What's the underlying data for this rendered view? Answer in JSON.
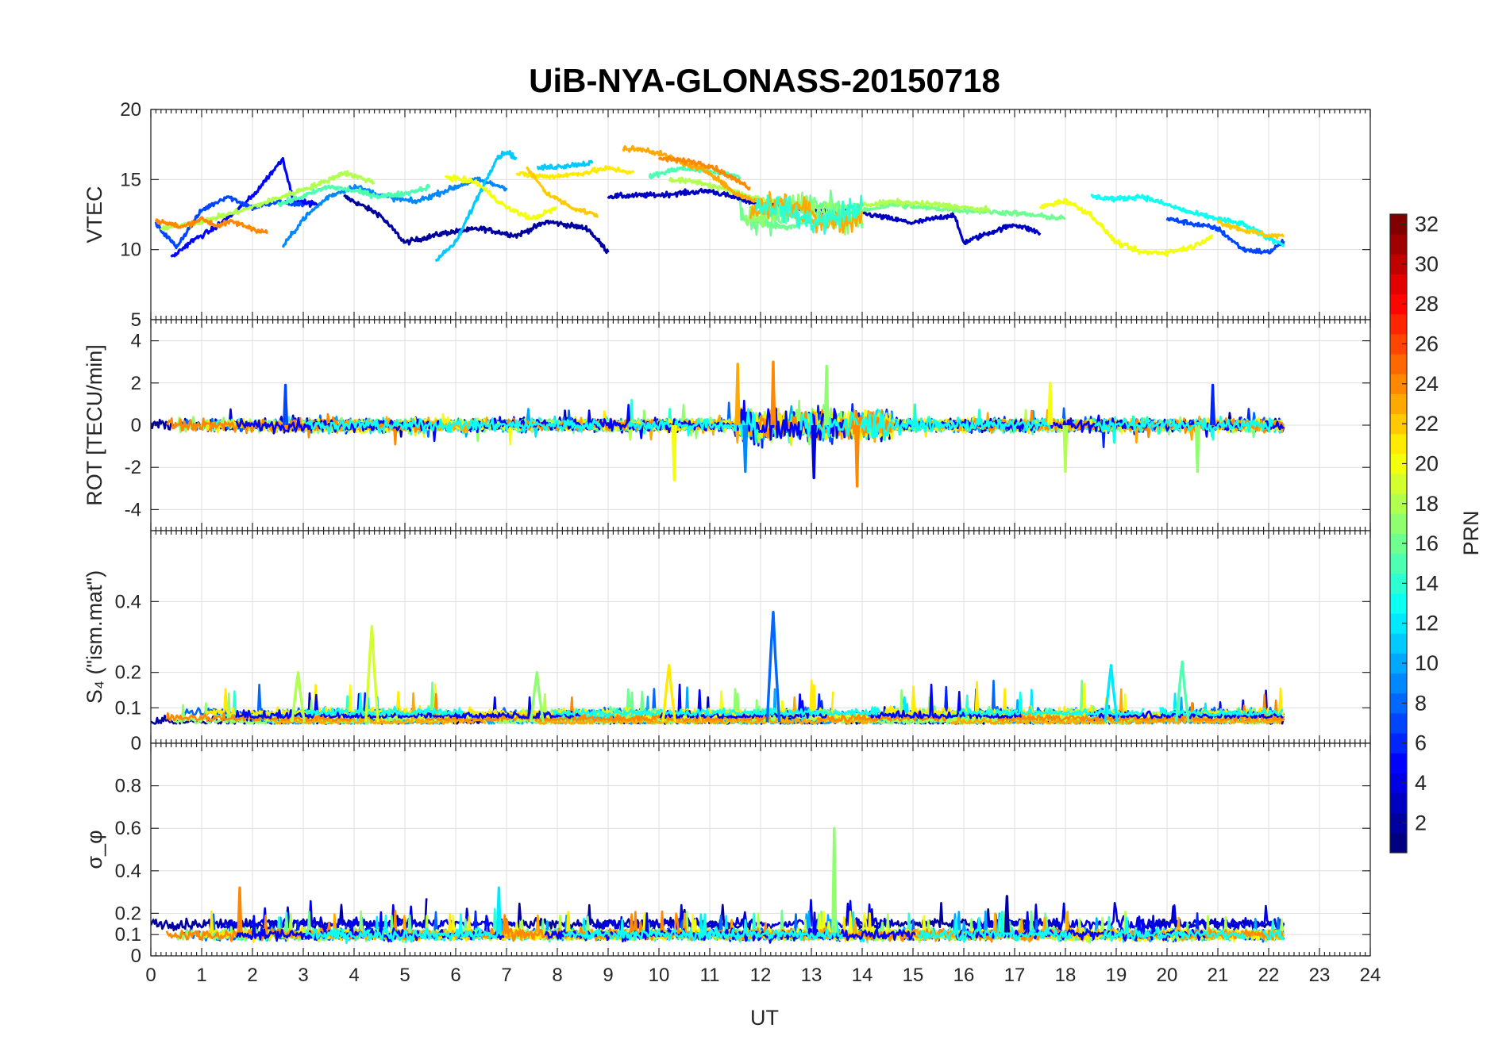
{
  "chart_data": {
    "type": "line",
    "title": "UiB-NYA-GLONASS-20150718",
    "xlabel": "UT",
    "xlim": [
      0,
      24
    ],
    "x_ticks": [
      "0",
      "1",
      "2",
      "3",
      "4",
      "5",
      "6",
      "7",
      "8",
      "9",
      "10",
      "11",
      "12",
      "13",
      "14",
      "15",
      "16",
      "17",
      "18",
      "19",
      "20",
      "21",
      "22",
      "23",
      "24"
    ],
    "data_end_ut": 22.3,
    "grid": true,
    "colormap": "jet",
    "colorbar": {
      "label": "PRN",
      "range": [
        1,
        32
      ],
      "ticks": [
        "2",
        "4",
        "6",
        "8",
        "10",
        "12",
        "14",
        "16",
        "18",
        "20",
        "22",
        "24",
        "26",
        "28",
        "30",
        "32"
      ],
      "placement": "right"
    },
    "panels": [
      {
        "name": "vtec",
        "ylabel": "VTEC",
        "ylim": [
          5,
          20
        ],
        "y_ticks": [
          "5",
          "10",
          "15",
          "20"
        ],
        "series": [
          {
            "prn": 2,
            "points": [
              [
                3.8,
                13.8
              ],
              [
                4.5,
                12.5
              ],
              [
                5.0,
                10.5
              ],
              [
                5.8,
                11.2
              ],
              [
                6.5,
                11.5
              ],
              [
                7.2,
                11.0
              ],
              [
                7.8,
                12.0
              ],
              [
                8.6,
                11.5
              ],
              [
                9.0,
                9.8
              ]
            ]
          },
          {
            "prn": 3,
            "points": [
              [
                9.0,
                13.8
              ],
              [
                10.0,
                13.9
              ],
              [
                11.0,
                14.2
              ],
              [
                12.0,
                13.2
              ],
              [
                13.0,
                12.8
              ],
              [
                14.0,
                12.6
              ],
              [
                15.0,
                11.9
              ],
              [
                15.8,
                12.5
              ],
              [
                16.0,
                10.5
              ],
              [
                16.5,
                11.2
              ],
              [
                17.0,
                11.8
              ],
              [
                17.5,
                11.2
              ]
            ]
          },
          {
            "prn": 5,
            "points": [
              [
                0.4,
                9.4
              ],
              [
                0.8,
                10.6
              ],
              [
                1.2,
                11.4
              ],
              [
                1.6,
                12.5
              ],
              [
                2.0,
                13.8
              ],
              [
                2.6,
                16.5
              ],
              [
                2.8,
                13.5
              ],
              [
                3.3,
                13.2
              ]
            ]
          },
          {
            "prn": 7,
            "points": [
              [
                0.1,
                11.8
              ],
              [
                0.5,
                10.2
              ],
              [
                1.0,
                12.8
              ],
              [
                1.5,
                13.8
              ],
              [
                2.0,
                13.0
              ],
              [
                2.5,
                13.4
              ],
              [
                3.0,
                13.2
              ]
            ]
          },
          {
            "prn": 7,
            "points": [
              [
                20.0,
                12.2
              ],
              [
                21.0,
                11.5
              ],
              [
                21.5,
                10.0
              ],
              [
                22.0,
                9.8
              ],
              [
                22.3,
                10.6
              ]
            ]
          },
          {
            "prn": 9,
            "points": [
              [
                2.6,
                10.2
              ],
              [
                3.0,
                12.2
              ],
              [
                3.5,
                13.8
              ],
              [
                4.0,
                14.5
              ],
              [
                4.6,
                13.8
              ],
              [
                5.2,
                13.4
              ],
              [
                5.8,
                14.2
              ],
              [
                6.4,
                15.0
              ],
              [
                7.0,
                14.4
              ]
            ]
          },
          {
            "prn": 11,
            "points": [
              [
                5.6,
                9.2
              ],
              [
                6.0,
                10.5
              ],
              [
                6.4,
                13.5
              ],
              [
                6.8,
                16.5
              ],
              [
                7.0,
                17.0
              ],
              [
                7.2,
                16.5
              ]
            ]
          },
          {
            "prn": 11,
            "points": [
              [
                7.6,
                15.8
              ],
              [
                8.2,
                16.0
              ],
              [
                8.7,
                16.2
              ]
            ]
          },
          {
            "prn": 13,
            "points": [
              [
                18.5,
                13.8
              ],
              [
                19.0,
                13.6
              ],
              [
                19.5,
                13.8
              ],
              [
                20.0,
                13.2
              ],
              [
                20.5,
                12.6
              ],
              [
                21.0,
                12.2
              ],
              [
                21.5,
                11.8
              ],
              [
                22.0,
                10.8
              ],
              [
                22.3,
                10.4
              ]
            ]
          },
          {
            "prn": 15,
            "points": [
              [
                2.5,
                13.2
              ],
              [
                3.0,
                13.8
              ],
              [
                3.5,
                14.5
              ],
              [
                4.0,
                14.2
              ],
              [
                4.5,
                13.8
              ],
              [
                5.0,
                14.0
              ],
              [
                5.5,
                14.5
              ]
            ]
          },
          {
            "prn": 15,
            "points": [
              [
                9.8,
                15.2
              ],
              [
                10.4,
                15.8
              ],
              [
                11.0,
                15.6
              ],
              [
                11.6,
                15.2
              ]
            ]
          },
          {
            "prn": 16,
            "points": [
              [
                11.8,
                12.0
              ],
              [
                12.5,
                11.6
              ],
              [
                13.2,
                12.2
              ],
              [
                14.0,
                12.8
              ],
              [
                14.6,
                13.2
              ],
              [
                15.2,
                13.0
              ],
              [
                16.0,
                12.8
              ],
              [
                17.0,
                12.6
              ],
              [
                18.0,
                12.2
              ]
            ]
          },
          {
            "prn": 18,
            "points": [
              [
                0.2,
                11.5
              ],
              [
                1.0,
                12.0
              ],
              [
                1.8,
                12.8
              ],
              [
                2.6,
                13.8
              ],
              [
                3.4,
                14.8
              ],
              [
                3.8,
                15.5
              ],
              [
                4.4,
                14.8
              ]
            ]
          },
          {
            "prn": 18,
            "points": [
              [
                10.2,
                15.0
              ],
              [
                10.8,
                14.8
              ],
              [
                11.4,
                14.2
              ],
              [
                12.0,
                13.6
              ],
              [
                12.8,
                13.2
              ],
              [
                13.6,
                13.0
              ],
              [
                14.6,
                13.4
              ],
              [
                15.5,
                13.2
              ],
              [
                16.5,
                12.8
              ]
            ]
          },
          {
            "prn": 20,
            "points": [
              [
                5.8,
                15.2
              ],
              [
                6.4,
                14.8
              ],
              [
                7.0,
                13.0
              ],
              [
                7.5,
                12.2
              ],
              [
                8.0,
                13.0
              ]
            ]
          },
          {
            "prn": 20,
            "points": [
              [
                17.5,
                13.0
              ],
              [
                18.0,
                13.5
              ],
              [
                18.5,
                12.5
              ],
              [
                19.0,
                10.5
              ],
              [
                19.5,
                9.8
              ],
              [
                20.0,
                9.8
              ],
              [
                20.5,
                10.2
              ],
              [
                20.9,
                11.0
              ]
            ]
          },
          {
            "prn": 21,
            "points": [
              [
                7.2,
                15.4
              ],
              [
                7.8,
                15.2
              ],
              [
                8.4,
                15.4
              ],
              [
                9.0,
                15.8
              ],
              [
                9.5,
                15.5
              ]
            ]
          },
          {
            "prn": 22,
            "points": [
              [
                7.4,
                15.8
              ],
              [
                7.8,
                14.0
              ],
              [
                8.3,
                13.0
              ],
              [
                8.8,
                12.4
              ]
            ]
          },
          {
            "prn": 23,
            "points": [
              [
                9.3,
                17.2
              ],
              [
                9.8,
                17.1
              ],
              [
                10.2,
                16.6
              ],
              [
                10.6,
                16.0
              ],
              [
                11.0,
                15.5
              ],
              [
                11.5,
                14.0
              ],
              [
                12.0,
                13.4
              ],
              [
                12.6,
                12.4
              ],
              [
                13.2,
                11.8
              ],
              [
                13.6,
                12.6
              ]
            ]
          },
          {
            "prn": 24,
            "points": [
              [
                0.1,
                12.1
              ],
              [
                0.6,
                11.6
              ],
              [
                1.0,
                12.2
              ],
              [
                1.3,
                11.7
              ],
              [
                1.6,
                12.0
              ],
              [
                2.0,
                11.5
              ],
              [
                2.3,
                11.2
              ]
            ]
          },
          {
            "prn": 24,
            "points": [
              [
                10.0,
                16.5
              ],
              [
                10.6,
                16.3
              ],
              [
                11.0,
                16.0
              ],
              [
                11.4,
                15.2
              ],
              [
                11.8,
                14.4
              ]
            ]
          },
          {
            "prn": 22,
            "points": [
              [
                21.0,
                12.0
              ],
              [
                21.5,
                11.4
              ],
              [
                22.0,
                11.0
              ],
              [
                22.3,
                11.0
              ]
            ]
          }
        ]
      },
      {
        "name": "rot",
        "ylabel": "ROT [TECU/min]",
        "ylim": [
          -5,
          5
        ],
        "y_ticks": [
          "-4",
          "-2",
          "0",
          "2",
          "4"
        ],
        "spikes": [
          {
            "prn": 7,
            "t": 2.65,
            "v": 1.9
          },
          {
            "prn": 20,
            "t": 10.3,
            "v": -2.6
          },
          {
            "prn": 23,
            "t": 11.55,
            "v": 2.9
          },
          {
            "prn": 9,
            "t": 11.7,
            "v": -2.2
          },
          {
            "prn": 24,
            "t": 12.25,
            "v": 3.0
          },
          {
            "prn": 4,
            "t": 13.05,
            "v": -2.5
          },
          {
            "prn": 17,
            "t": 13.3,
            "v": 2.8
          },
          {
            "prn": 24,
            "t": 13.9,
            "v": -2.9
          },
          {
            "prn": 20,
            "t": 17.7,
            "v": 2.0
          },
          {
            "prn": 18,
            "t": 18.0,
            "v": -2.2
          },
          {
            "prn": 17,
            "t": 20.6,
            "v": -2.2
          },
          {
            "prn": 6,
            "t": 20.9,
            "v": 1.9
          }
        ]
      },
      {
        "name": "s4",
        "ylabel": "S₄ (\"ism.mat\")",
        "ylim": [
          0,
          0.6
        ],
        "y_ticks": [
          "0",
          "0.1",
          "0.2",
          "0.4"
        ],
        "spikes": [
          {
            "prn": 19,
            "t": 4.35,
            "v": 0.33
          },
          {
            "prn": 8,
            "t": 12.25,
            "v": 0.37
          },
          {
            "prn": 21,
            "t": 10.2,
            "v": 0.22
          },
          {
            "prn": 12,
            "t": 18.9,
            "v": 0.22
          },
          {
            "prn": 15,
            "t": 20.3,
            "v": 0.23
          },
          {
            "prn": 17,
            "t": 7.6,
            "v": 0.2
          },
          {
            "prn": 18,
            "t": 2.9,
            "v": 0.2
          }
        ]
      },
      {
        "name": "sigma_phi",
        "ylabel": "σ_φ",
        "ylim": [
          0,
          1
        ],
        "y_ticks": [
          "0",
          "0.1",
          "0.2",
          "0.4",
          "0.6",
          "0.8"
        ],
        "spikes": [
          {
            "prn": 17,
            "t": 13.45,
            "v": 0.6
          },
          {
            "prn": 24,
            "t": 1.75,
            "v": 0.32
          },
          {
            "prn": 12,
            "t": 6.85,
            "v": 0.32
          },
          {
            "prn": 2,
            "t": 16.85,
            "v": 0.28
          }
        ]
      }
    ]
  }
}
